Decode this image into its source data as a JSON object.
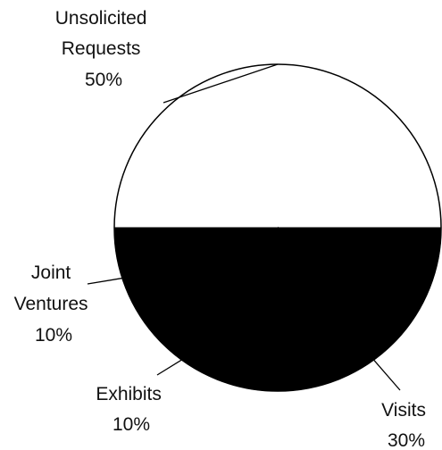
{
  "chart_data": {
    "type": "pie",
    "title": "",
    "slices": [
      {
        "label_lines": [
          "Unsolicited",
          "Requests"
        ],
        "value": 50,
        "value_label": "50%",
        "fill": "#ffffff"
      },
      {
        "label_lines": [
          "Visits"
        ],
        "value": 30,
        "value_label": "30%",
        "fill": "#000000"
      },
      {
        "label_lines": [
          "Exhibits"
        ],
        "value": 10,
        "value_label": "10%",
        "fill": "#000000"
      },
      {
        "label_lines": [
          "Joint",
          "Ventures"
        ],
        "value": 10,
        "value_label": "10%",
        "fill": "#000000"
      }
    ],
    "slice_borders_shown": false,
    "outline_color": "#000000"
  }
}
